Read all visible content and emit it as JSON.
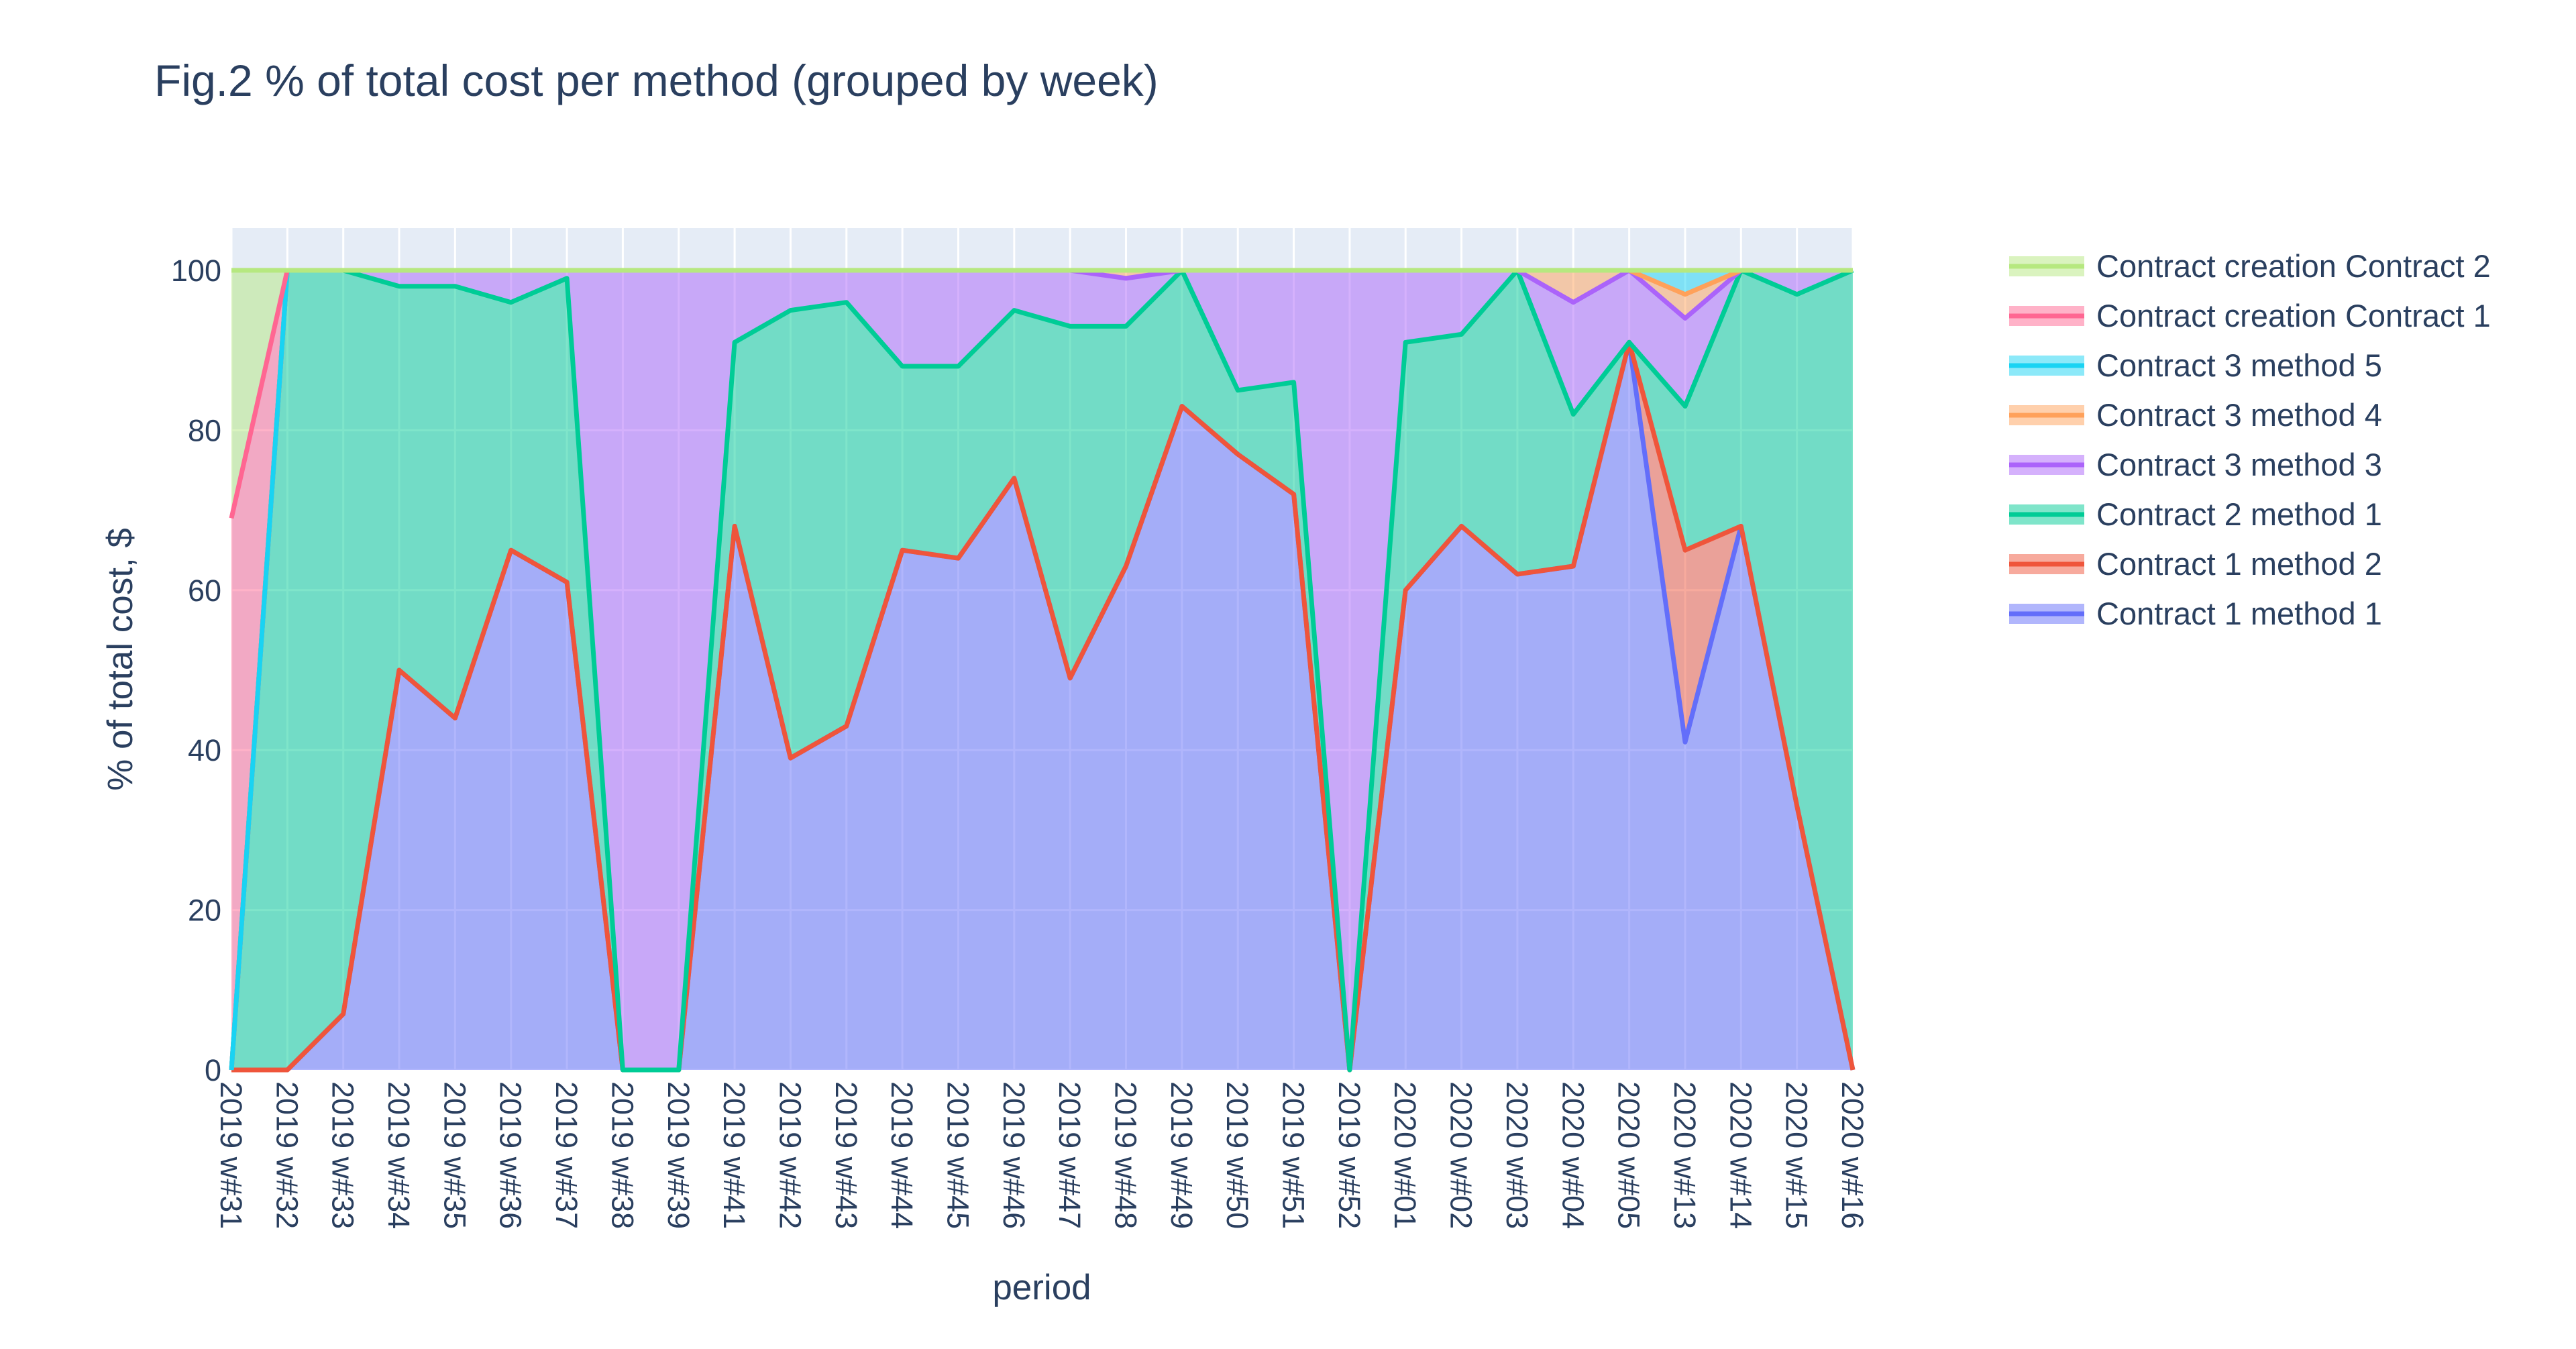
{
  "chart_data": {
    "type": "area",
    "title": "Fig.2 % of total cost per method (grouped by week)",
    "xlabel": "period",
    "ylabel": "% of total cost, $",
    "ylim": [
      0,
      100
    ],
    "yticks": [
      "0",
      "20",
      "40",
      "60",
      "80",
      "100"
    ],
    "grid": true,
    "legend_position": "right",
    "stacked": true,
    "categories": [
      "2019 w#31",
      "2019 w#32",
      "2019 w#33",
      "2019 w#34",
      "2019 w#35",
      "2019 w#36",
      "2019 w#37",
      "2019 w#38",
      "2019 w#39",
      "2019 w#41",
      "2019 w#42",
      "2019 w#43",
      "2019 w#44",
      "2019 w#45",
      "2019 w#46",
      "2019 w#47",
      "2019 w#48",
      "2019 w#49",
      "2019 w#50",
      "2019 w#51",
      "2019 w#52",
      "2020 w#01",
      "2020 w#02",
      "2020 w#03",
      "2020 w#04",
      "2020 w#05",
      "2020 w#13",
      "2020 w#14",
      "2020 w#15",
      "2020 w#16"
    ],
    "series": [
      {
        "name": "Contract 1 method 1",
        "color": "#636efa",
        "values": [
          0,
          0,
          7,
          50,
          44,
          65,
          61,
          0,
          0,
          68,
          39,
          43,
          65,
          64,
          74,
          49,
          63,
          83,
          77,
          72,
          0,
          60,
          68,
          62,
          63,
          91,
          41,
          68,
          33,
          0
        ]
      },
      {
        "name": "Contract 1 method 2",
        "color": "#ef553b",
        "values": [
          0,
          0,
          0,
          0,
          0,
          0,
          0,
          0,
          0,
          0,
          0,
          0,
          0,
          0,
          0,
          0,
          0,
          0,
          0,
          0,
          0,
          0,
          0,
          0,
          0,
          0,
          24,
          0,
          0,
          0
        ]
      },
      {
        "name": "Contract 2 method 1",
        "color": "#00cc96",
        "values": [
          0,
          100,
          93,
          48,
          54,
          31,
          38,
          0,
          0,
          23,
          56,
          53,
          23,
          24,
          21,
          44,
          30,
          17,
          8,
          14,
          0,
          31,
          24,
          38,
          19,
          0,
          18,
          32,
          64,
          100
        ]
      },
      {
        "name": "Contract 3 method 3",
        "color": "#ab63fa",
        "values": [
          0,
          0,
          0,
          2,
          2,
          4,
          1,
          100,
          100,
          9,
          5,
          4,
          12,
          12,
          5,
          7,
          6,
          0,
          15,
          14,
          100,
          9,
          8,
          0,
          14,
          9,
          11,
          0,
          3,
          0
        ]
      },
      {
        "name": "Contract 3 method 4",
        "color": "#ffa15a",
        "values": [
          0,
          0,
          0,
          0,
          0,
          0,
          0,
          0,
          0,
          0,
          0,
          0,
          0,
          0,
          0,
          0,
          1,
          0,
          0,
          0,
          0,
          0,
          0,
          0,
          4,
          0,
          3,
          0,
          0,
          0
        ]
      },
      {
        "name": "Contract 3 method 5",
        "color": "#19d3f3",
        "values": [
          0,
          0,
          0,
          0,
          0,
          0,
          0,
          0,
          0,
          0,
          0,
          0,
          0,
          0,
          0,
          0,
          0,
          0,
          0,
          0,
          0,
          0,
          0,
          0,
          0,
          0,
          3,
          0,
          0,
          0
        ]
      },
      {
        "name": "Contract creation Contract 1",
        "color": "#ff6692",
        "values": [
          69,
          0,
          0,
          0,
          0,
          0,
          0,
          0,
          0,
          0,
          0,
          0,
          0,
          0,
          0,
          0,
          0,
          0,
          0,
          0,
          0,
          0,
          0,
          0,
          0,
          0,
          0,
          0,
          0,
          0
        ]
      },
      {
        "name": "Contract creation Contract 2",
        "color": "#b6e880",
        "values": [
          31,
          0,
          0,
          0,
          0,
          0,
          0,
          0,
          0,
          0,
          0,
          0,
          0,
          0,
          0,
          0,
          0,
          0,
          0,
          0,
          0,
          0,
          0,
          0,
          0,
          0,
          0,
          0,
          0,
          0
        ]
      }
    ]
  }
}
